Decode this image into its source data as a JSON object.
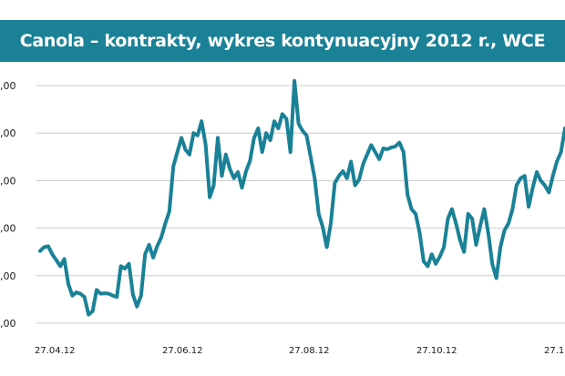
{
  "chart_data": {
    "type": "line",
    "title": "Canola – kontrakty, wykres kontynuacyjny 2012 r., WCE",
    "xlabel": "",
    "ylabel": "",
    "y_tick_labels": [
      ",00",
      ",00",
      ",00",
      ",00",
      ",00",
      ",00"
    ],
    "ylim": [
      0,
      5
    ],
    "grid": true,
    "x_tick_labels": [
      "27.04.12",
      "27.06.12",
      "27.08.12",
      "27.10.12",
      "27.1"
    ],
    "line_color": "#1a8196",
    "series": [
      {
        "values": [
          1.52,
          1.6,
          1.62,
          1.45,
          1.33,
          1.2,
          1.35,
          0.82,
          0.58,
          0.65,
          0.62,
          0.55,
          0.18,
          0.25,
          0.7,
          0.62,
          0.63,
          0.62,
          0.58,
          0.55,
          1.2,
          1.15,
          1.25,
          0.6,
          0.35,
          0.58,
          1.45,
          1.65,
          1.38,
          1.62,
          1.8,
          2.1,
          2.35,
          3.3,
          3.6,
          3.9,
          3.65,
          3.55,
          4.0,
          3.95,
          4.25,
          3.75,
          2.65,
          2.9,
          3.9,
          3.1,
          3.55,
          3.25,
          3.05,
          3.18,
          2.85,
          3.2,
          3.42,
          3.9,
          4.1,
          3.6,
          4.0,
          3.85,
          4.25,
          4.1,
          4.4,
          4.3,
          3.6,
          5.1,
          4.2,
          4.05,
          3.95,
          3.5,
          3.05,
          2.3,
          2.02,
          1.6,
          2.1,
          2.95,
          3.1,
          3.2,
          3.05,
          3.4,
          2.9,
          3.02,
          3.35,
          3.55,
          3.75,
          3.6,
          3.45,
          3.68,
          3.66,
          3.7,
          3.72,
          3.8,
          3.6,
          2.7,
          2.4,
          2.3,
          1.9,
          1.3,
          1.2,
          1.45,
          1.25,
          1.4,
          1.6,
          2.2,
          2.4,
          2.1,
          1.75,
          1.5,
          2.3,
          2.2,
          1.65,
          2.05,
          2.4,
          1.9,
          1.25,
          0.95,
          1.6,
          1.95,
          2.1,
          2.4,
          2.9,
          3.05,
          3.1,
          2.45,
          2.85,
          3.18,
          3.0,
          2.9,
          2.75,
          3.1,
          3.4,
          3.6,
          4.1
        ]
      }
    ]
  }
}
